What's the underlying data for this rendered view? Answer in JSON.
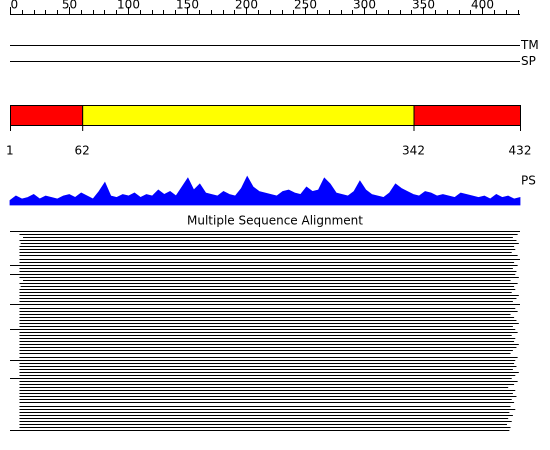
{
  "sequence_length": 432,
  "ruler": {
    "ticks": [
      0,
      50,
      100,
      150,
      200,
      250,
      300,
      350,
      400
    ],
    "minor_ticks": [
      0,
      10,
      20,
      30,
      40,
      50,
      60,
      70,
      80,
      90,
      100,
      110,
      120,
      130,
      140,
      150,
      160,
      170,
      180,
      190,
      200,
      210,
      220,
      230,
      240,
      250,
      260,
      270,
      280,
      290,
      300,
      310,
      320,
      330,
      340,
      350,
      360,
      370,
      380,
      390,
      400,
      410,
      420,
      430
    ]
  },
  "tracks": [
    {
      "label": "TM"
    },
    {
      "label": "SP"
    }
  ],
  "domains": [
    {
      "start": 1,
      "end": 62,
      "color": "#ff0000"
    },
    {
      "start": 62,
      "end": 342,
      "color": "#ffff00"
    },
    {
      "start": 342,
      "end": 432,
      "color": "#ff0000"
    }
  ],
  "ps_track": {
    "label": "PS",
    "color": "#0000ff",
    "values": [
      0.15,
      0.3,
      0.2,
      0.25,
      0.35,
      0.2,
      0.3,
      0.25,
      0.2,
      0.3,
      0.35,
      0.25,
      0.4,
      0.3,
      0.2,
      0.45,
      0.75,
      0.3,
      0.25,
      0.35,
      0.3,
      0.4,
      0.25,
      0.35,
      0.3,
      0.5,
      0.35,
      0.45,
      0.3,
      0.6,
      0.9,
      0.5,
      0.7,
      0.4,
      0.35,
      0.3,
      0.45,
      0.35,
      0.3,
      0.55,
      0.95,
      0.6,
      0.45,
      0.4,
      0.35,
      0.3,
      0.45,
      0.5,
      0.4,
      0.35,
      0.6,
      0.45,
      0.5,
      0.9,
      0.7,
      0.4,
      0.35,
      0.3,
      0.45,
      0.8,
      0.5,
      0.35,
      0.3,
      0.25,
      0.4,
      0.7,
      0.55,
      0.45,
      0.35,
      0.3,
      0.45,
      0.4,
      0.3,
      0.35,
      0.3,
      0.25,
      0.4,
      0.35,
      0.3,
      0.25,
      0.3,
      0.2,
      0.35,
      0.25,
      0.3,
      0.2,
      0.25
    ]
  },
  "msa": {
    "title": "Multiple Sequence Alignment",
    "rows": [
      [
        1,
        432
      ],
      [
        9,
        430
      ],
      [
        12,
        426
      ],
      [
        9,
        429
      ],
      [
        10,
        431
      ],
      [
        9,
        427
      ],
      [
        9,
        428
      ],
      [
        9,
        425
      ],
      [
        9,
        430
      ],
      [
        9,
        432
      ],
      [
        9,
        427
      ],
      [
        1,
        430
      ],
      [
        9,
        426
      ],
      [
        9,
        429
      ],
      [
        1,
        428
      ],
      [
        9,
        431
      ],
      [
        12,
        424
      ],
      [
        9,
        430
      ],
      [
        10,
        427
      ],
      [
        9,
        428
      ],
      [
        9,
        425
      ],
      [
        9,
        431
      ],
      [
        9,
        429
      ],
      [
        9,
        426
      ],
      [
        1,
        432
      ],
      [
        9,
        428
      ],
      [
        9,
        430
      ],
      [
        9,
        424
      ],
      [
        9,
        427
      ],
      [
        9,
        429
      ],
      [
        9,
        431
      ],
      [
        9,
        426
      ],
      [
        1,
        428
      ],
      [
        9,
        430
      ],
      [
        9,
        425
      ],
      [
        9,
        428
      ],
      [
        9,
        427
      ],
      [
        9,
        431
      ],
      [
        9,
        429
      ],
      [
        9,
        426
      ],
      [
        9,
        424
      ],
      [
        9,
        430
      ],
      [
        1,
        428
      ],
      [
        9,
        427
      ],
      [
        9,
        429
      ],
      [
        9,
        426
      ],
      [
        9,
        431
      ],
      [
        9,
        428
      ],
      [
        1,
        425
      ],
      [
        9,
        430
      ],
      [
        9,
        427
      ],
      [
        9,
        422
      ],
      [
        9,
        428
      ],
      [
        9,
        426
      ],
      [
        9,
        429
      ],
      [
        9,
        425
      ],
      [
        9,
        427
      ],
      [
        9,
        424
      ],
      [
        9,
        428
      ],
      [
        9,
        423
      ],
      [
        9,
        426
      ],
      [
        9,
        422
      ],
      [
        9,
        425
      ],
      [
        9,
        421
      ],
      [
        9,
        424
      ],
      [
        1,
        423
      ]
    ]
  }
}
